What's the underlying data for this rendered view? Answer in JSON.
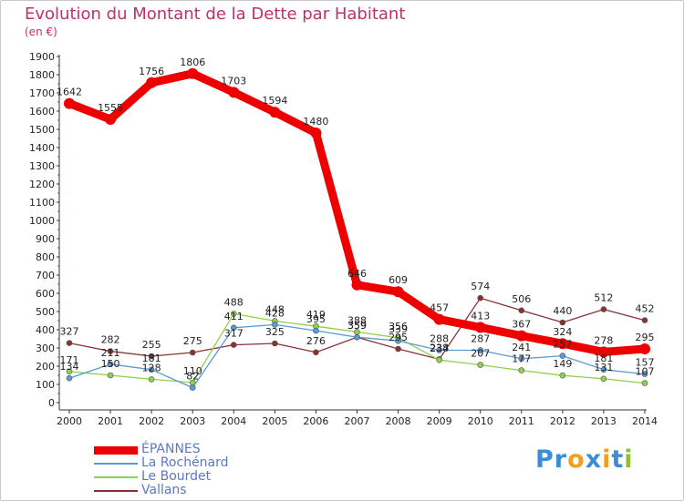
{
  "title": "Evolution du Montant de la Dette par Habitant",
  "unit_label": "(en €)",
  "brand": {
    "text": "Proxiti",
    "letters": [
      {
        "ch": "P",
        "color": "#3a8ed8"
      },
      {
        "ch": "r",
        "color": "#3a8ed8"
      },
      {
        "ch": "o",
        "color": "#f0a020"
      },
      {
        "ch": "x",
        "color": "#3a8ed8"
      },
      {
        "ch": "i",
        "color": "#f0a020"
      },
      {
        "ch": "t",
        "color": "#3a8ed8"
      },
      {
        "ch": "i",
        "color": "#90c030"
      }
    ]
  },
  "chart_data": {
    "type": "line",
    "title": "Evolution du Montant de la Dette par Habitant",
    "ylabel": "(en €)",
    "xlabel": "",
    "x": [
      2000,
      2001,
      2002,
      2003,
      2004,
      2005,
      2006,
      2007,
      2008,
      2009,
      2010,
      2011,
      2012,
      2013,
      2014
    ],
    "ylim": [
      0,
      1900
    ],
    "yticks": [
      0,
      100,
      200,
      300,
      400,
      500,
      600,
      700,
      800,
      900,
      1000,
      1100,
      1200,
      1300,
      1400,
      1500,
      1600,
      1700,
      1800,
      1900
    ],
    "grid": false,
    "legend_position": "bottom-left",
    "series": [
      {
        "name": "ÉPANNES",
        "color": "#ee0000",
        "values": [
          1642,
          1555,
          1756,
          1806,
          1703,
          1594,
          1480,
          646,
          609,
          457,
          413,
          367,
          324,
          278,
          295
        ]
      },
      {
        "name": "La Rochénard",
        "color": "#5a9ad6",
        "values": [
          134,
          211,
          181,
          82,
          411,
          428,
          395,
          359,
          339,
          288,
          287,
          241,
          257,
          181,
          157
        ]
      },
      {
        "name": "Le Bourdet",
        "color": "#90d050",
        "values": [
          171,
          150,
          128,
          110,
          488,
          448,
          419,
          388,
          356,
          234,
          207,
          177,
          149,
          131,
          107
        ]
      },
      {
        "name": "Vallans",
        "color": "#883333",
        "values": [
          327,
          282,
          255,
          275,
          317,
          325,
          276,
          359,
          295,
          238,
          574,
          506,
          440,
          512,
          452
        ]
      }
    ]
  }
}
